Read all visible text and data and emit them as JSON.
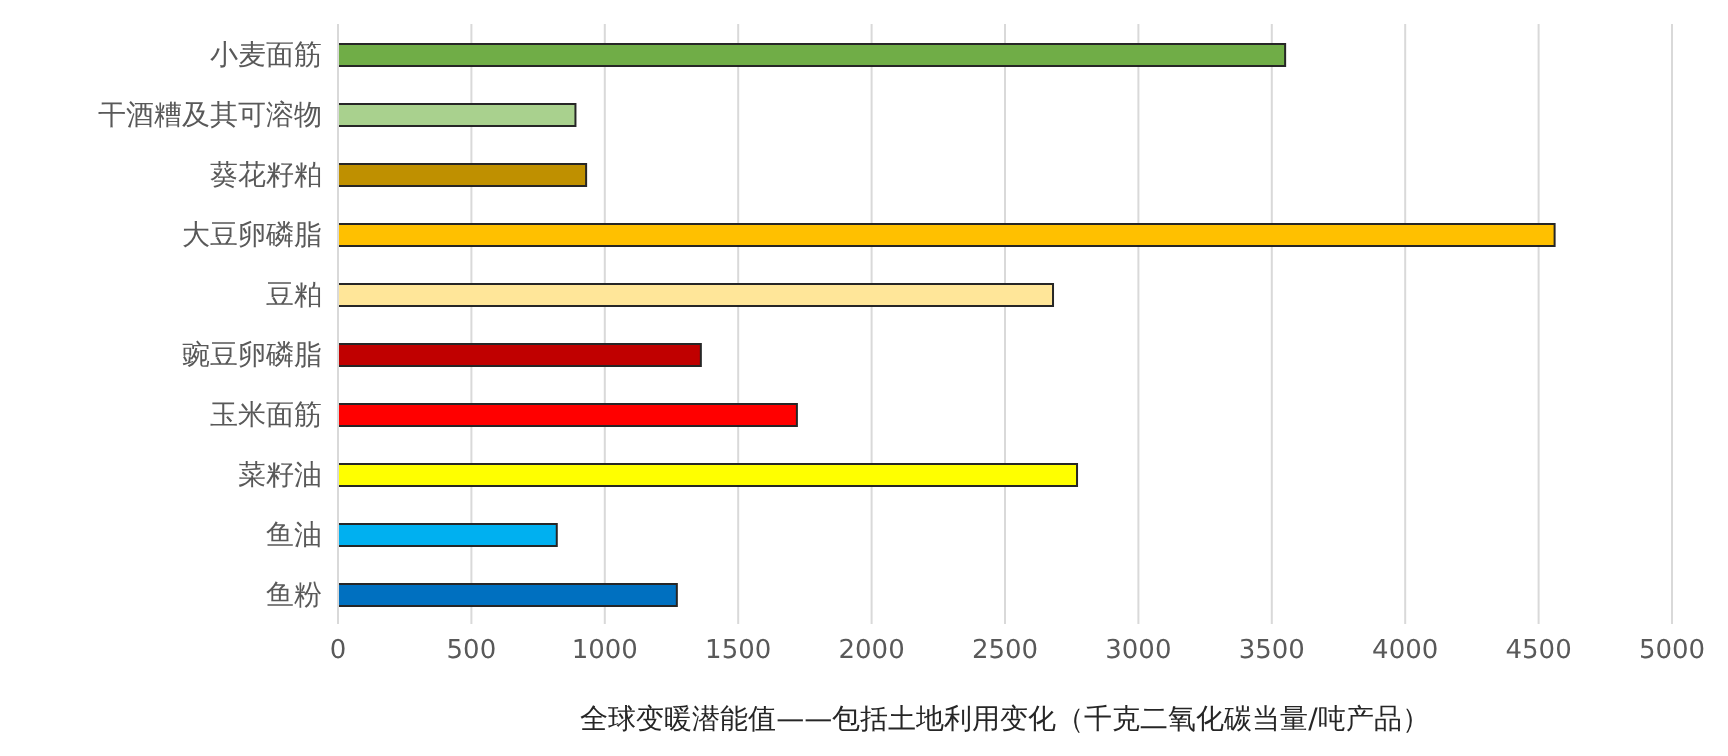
{
  "chart_data": {
    "type": "bar",
    "orientation": "horizontal",
    "xlabel": "全球变暖潜能值——包括土地利用变化（千克二氧化碳当量/吨产品）",
    "categories": [
      "小麦面筋",
      "干酒糟及其可溶物",
      "葵花籽粕",
      "大豆卵磷脂",
      "豆粕",
      "豌豆卵磷脂",
      "玉米面筋",
      "菜籽油",
      "鱼油",
      "鱼粉"
    ],
    "values": [
      3550,
      890,
      930,
      4560,
      2680,
      1360,
      1720,
      2770,
      820,
      1270
    ],
    "colors": [
      "#70ad47",
      "#a9d18e",
      "#bf9000",
      "#ffc000",
      "#ffe699",
      "#c00000",
      "#ff0000",
      "#ffff00",
      "#00b0f0",
      "#0070c0"
    ],
    "xlim": [
      0,
      5000
    ],
    "xticks": [
      0,
      500,
      1000,
      1500,
      2000,
      2500,
      3000,
      3500,
      4000,
      4500,
      5000
    ],
    "grid": "x",
    "legend": false
  }
}
